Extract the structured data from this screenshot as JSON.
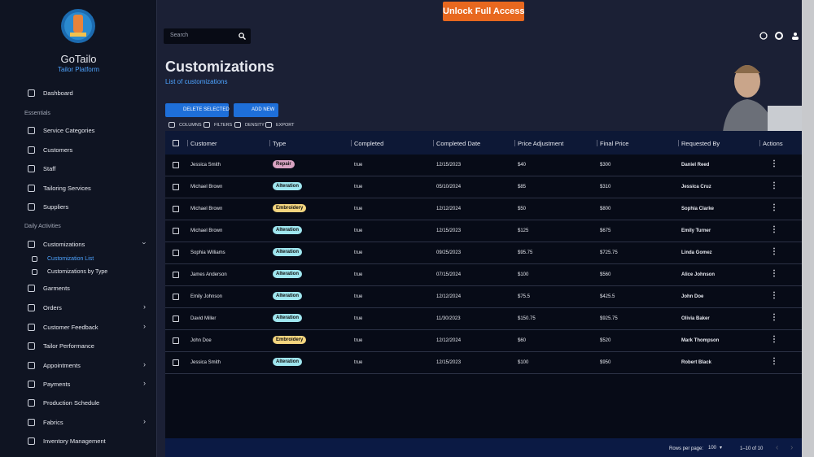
{
  "banner": {
    "button": "Unlock Full Access"
  },
  "brand": {
    "name": "GoTailo",
    "tagline": "Tailor Platform"
  },
  "search": {
    "placeholder": "Search"
  },
  "sidebar": {
    "dashboard": "Dashboard",
    "sections": [
      {
        "title": "Essentials",
        "items": [
          "Service Categories",
          "Customers",
          "Staff",
          "Tailoring Services",
          "Suppliers"
        ]
      },
      {
        "title": "Daily Activities",
        "items": [
          "Customizations",
          "Customization List",
          "Customizations by Type",
          "Garments",
          "Orders",
          "Customer Feedback",
          "Tailor Performance",
          "Appointments",
          "Payments",
          "Production Schedule",
          "Fabrics",
          "Inventory Management"
        ]
      }
    ]
  },
  "page": {
    "title": "Customizations",
    "subtitle": "List of customizations"
  },
  "buttons": {
    "delete": "DELETE SELECTED",
    "add": "ADD NEW"
  },
  "toolbar": [
    "COLUMNS",
    "FILTERS",
    "DENSITY",
    "EXPORT"
  ],
  "table": {
    "headers": [
      "Customer",
      "Type",
      "Completed",
      "Completed Date",
      "Price Adjustment",
      "Final Price",
      "Requested By",
      "Actions"
    ],
    "rows": [
      [
        "Jessica Smith",
        "Repair",
        "true",
        "12/15/2023",
        "$40",
        "$300",
        "Daniel Reed"
      ],
      [
        "Michael Brown",
        "Alteration",
        "true",
        "05/10/2024",
        "$85",
        "$310",
        "Jessica Cruz"
      ],
      [
        "Michael Brown",
        "Embroidery",
        "true",
        "12/12/2024",
        "$50",
        "$800",
        "Sophia Clarke"
      ],
      [
        "Michael Brown",
        "Alteration",
        "true",
        "12/15/2023",
        "$125",
        "$675",
        "Emily Turner"
      ],
      [
        "Sophia Williams",
        "Alteration",
        "true",
        "09/25/2023",
        "$95.75",
        "$725.75",
        "Linda Gomez"
      ],
      [
        "James Anderson",
        "Alteration",
        "true",
        "07/15/2024",
        "$100",
        "$560",
        "Alice Johnson"
      ],
      [
        "Emily Johnson",
        "Alteration",
        "true",
        "12/12/2024",
        "$75.5",
        "$425.5",
        "John Doe"
      ],
      [
        "David Miller",
        "Alteration",
        "true",
        "11/30/2023",
        "$150.75",
        "$925.75",
        "Olivia Baker"
      ],
      [
        "John Doe",
        "Embroidery",
        "true",
        "12/12/2024",
        "$60",
        "$520",
        "Mark Thompson"
      ],
      [
        "Jessica Smith",
        "Alteration",
        "true",
        "12/15/2023",
        "$100",
        "$950",
        "Robert Black"
      ]
    ]
  },
  "pagination": {
    "label": "Rows per page:",
    "rows": "100",
    "range": "1–10 of 10"
  }
}
